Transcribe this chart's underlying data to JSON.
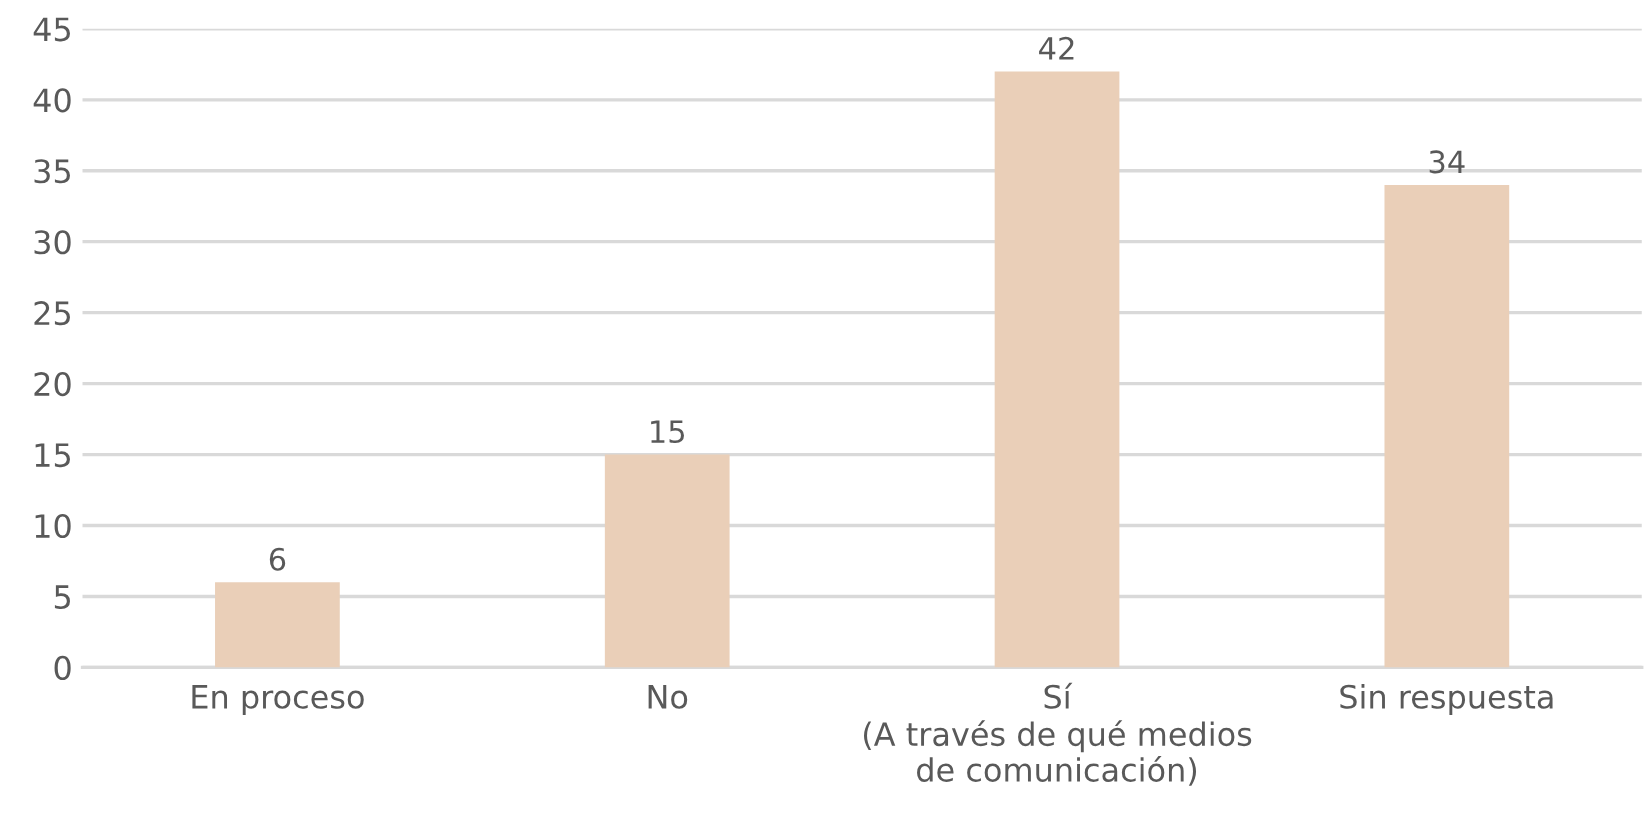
{
  "chart_data": {
    "type": "bar",
    "categories": [
      "En proceso",
      "No",
      "Sí\n(A través de qué medios\nde comunicación)",
      "Sin respuesta"
    ],
    "values": [
      6,
      15,
      42,
      34
    ],
    "color": "#eacfb8",
    "ylim": [
      0,
      45
    ],
    "yticks": [
      0,
      5,
      10,
      15,
      20,
      25,
      30,
      35,
      40,
      45
    ],
    "grid": "y",
    "data_labels": true,
    "legend": false
  }
}
